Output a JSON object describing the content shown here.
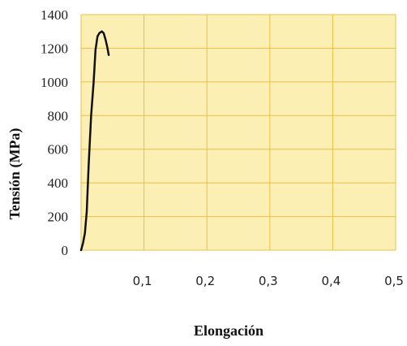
{
  "chart_data": {
    "type": "line",
    "xlabel": "Elongación",
    "ylabel": "Tensión (MPa)",
    "xlim": [
      0,
      0.5
    ],
    "ylim": [
      0,
      1400
    ],
    "x_ticks": [
      "0,1",
      "0,2",
      "0,3",
      "0,4",
      "0,5"
    ],
    "x_tick_values": [
      0.1,
      0.2,
      0.3,
      0.4,
      0.5
    ],
    "y_ticks": [
      "0",
      "200",
      "400",
      "600",
      "800",
      "1000",
      "1200",
      "1400"
    ],
    "y_tick_values": [
      0,
      200,
      400,
      600,
      800,
      1000,
      1200,
      1400
    ],
    "grid": true,
    "colors": {
      "plot_background": "#FCEFB4",
      "grid": "#E8C04A",
      "line": "#111111"
    },
    "series": [
      {
        "x": [
          0.0,
          0.003,
          0.006,
          0.009,
          0.012,
          0.016,
          0.02,
          0.023,
          0.026,
          0.029,
          0.033,
          0.036,
          0.039,
          0.042,
          0.044
        ],
        "y": [
          0,
          40,
          100,
          230,
          500,
          800,
          1000,
          1190,
          1270,
          1290,
          1300,
          1290,
          1250,
          1200,
          1160
        ]
      }
    ]
  }
}
